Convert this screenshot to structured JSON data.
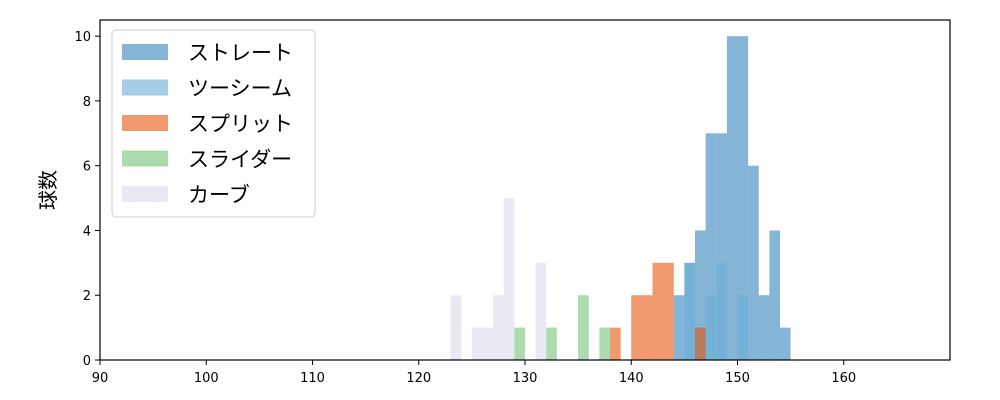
{
  "chart_data": {
    "type": "bar",
    "subtype": "histogram",
    "title": "",
    "xlabel": "",
    "ylabel": "球数",
    "xlim": [
      90,
      170
    ],
    "ylim": [
      0,
      10.5
    ],
    "xticks": [
      90,
      100,
      110,
      120,
      130,
      140,
      150,
      160
    ],
    "yticks": [
      0,
      2,
      4,
      6,
      8,
      10
    ],
    "legend_position": "top-left",
    "grid": false,
    "series": [
      {
        "name": "ストレート",
        "color": "#1f77b4",
        "opacity": 0.55,
        "bins": [
          {
            "x0": 144.0,
            "x1": 145.0,
            "count": 2
          },
          {
            "x0": 145.0,
            "x1": 146.0,
            "count": 3
          },
          {
            "x0": 146.0,
            "x1": 147.0,
            "count": 4
          },
          {
            "x0": 147.0,
            "x1": 148.0,
            "count": 7
          },
          {
            "x0": 148.0,
            "x1": 149.0,
            "count": 7
          },
          {
            "x0": 149.0,
            "x1": 150.0,
            "count": 10
          },
          {
            "x0": 150.0,
            "x1": 151.0,
            "count": 10
          },
          {
            "x0": 151.0,
            "x1": 152.0,
            "count": 6
          },
          {
            "x0": 152.0,
            "x1": 153.0,
            "count": 2
          },
          {
            "x0": 153.0,
            "x1": 154.0,
            "count": 4
          },
          {
            "x0": 154.0,
            "x1": 155.0,
            "count": 1
          }
        ]
      },
      {
        "name": "ツーシーム",
        "color": "#6baed6",
        "opacity": 0.6,
        "bins": [
          {
            "x0": 145.0,
            "x1": 146.0,
            "count": 3
          },
          {
            "x0": 146.0,
            "x1": 147.0,
            "count": 1
          },
          {
            "x0": 147.0,
            "x1": 148.0,
            "count": 2
          },
          {
            "x0": 148.0,
            "x1": 149.0,
            "count": 3
          },
          {
            "x0": 150.0,
            "x1": 151.0,
            "count": 2
          }
        ]
      },
      {
        "name": "スプリット",
        "color": "#e6550d",
        "opacity": 0.6,
        "bins": [
          {
            "x0": 138.0,
            "x1": 139.0,
            "count": 1
          },
          {
            "x0": 140.0,
            "x1": 141.0,
            "count": 2
          },
          {
            "x0": 141.0,
            "x1": 142.0,
            "count": 2
          },
          {
            "x0": 142.0,
            "x1": 143.0,
            "count": 3
          },
          {
            "x0": 143.0,
            "x1": 144.0,
            "count": 3
          },
          {
            "x0": 146.0,
            "x1": 147.0,
            "count": 1
          }
        ]
      },
      {
        "name": "スライダー",
        "color": "#74c476",
        "opacity": 0.6,
        "bins": [
          {
            "x0": 129.0,
            "x1": 130.0,
            "count": 1
          },
          {
            "x0": 132.0,
            "x1": 133.0,
            "count": 1
          },
          {
            "x0": 135.0,
            "x1": 136.0,
            "count": 2
          },
          {
            "x0": 137.0,
            "x1": 138.0,
            "count": 1
          }
        ]
      },
      {
        "name": "カーブ",
        "color": "#dadaeb",
        "opacity": 0.6,
        "bins": [
          {
            "x0": 123.0,
            "x1": 124.0,
            "count": 2
          },
          {
            "x0": 125.0,
            "x1": 126.0,
            "count": 1
          },
          {
            "x0": 126.0,
            "x1": 127.0,
            "count": 1
          },
          {
            "x0": 127.0,
            "x1": 128.0,
            "count": 2
          },
          {
            "x0": 128.0,
            "x1": 129.0,
            "count": 5
          },
          {
            "x0": 131.0,
            "x1": 132.0,
            "count": 3
          }
        ]
      }
    ]
  }
}
